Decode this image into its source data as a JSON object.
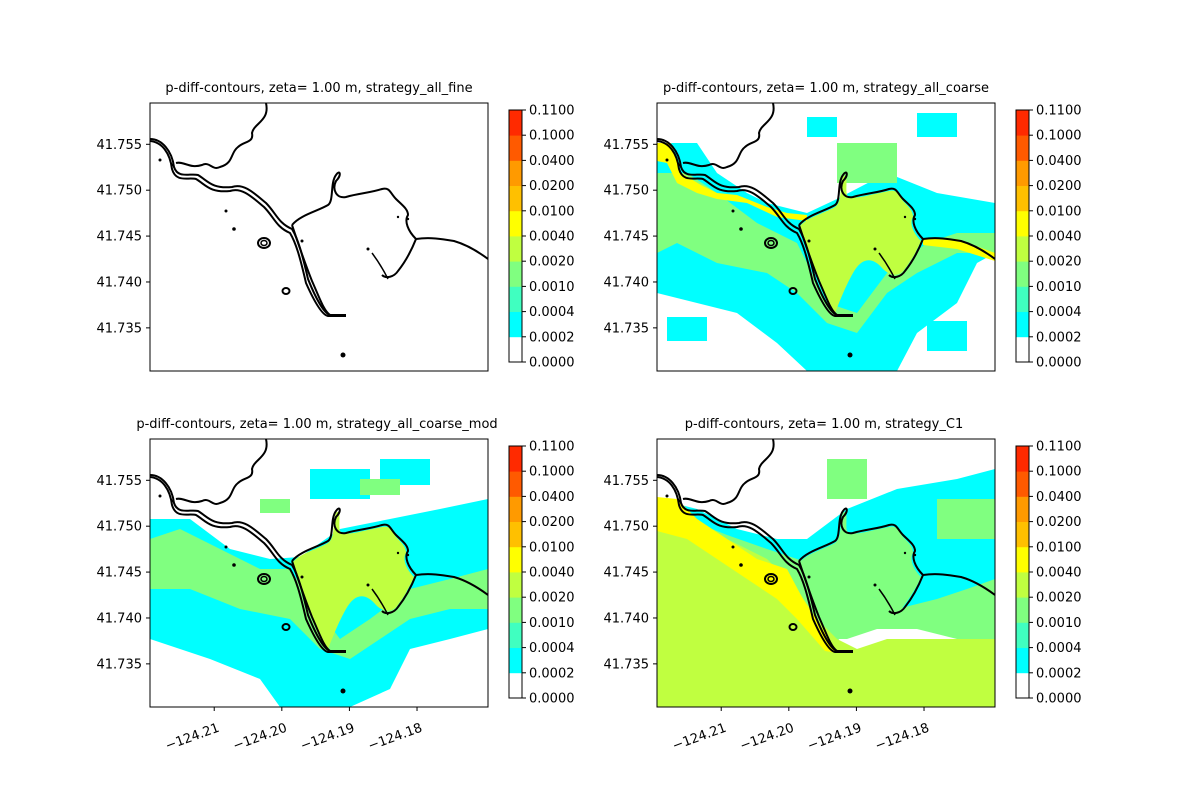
{
  "figure": {
    "colorbar_levels": [
      "0.0000",
      "0.0002",
      "0.0004",
      "0.0010",
      "0.0020",
      "0.0040",
      "0.0100",
      "0.0200",
      "0.0400",
      "0.1000",
      "0.1100"
    ],
    "colorbar_colors": [
      "#ffffff",
      "#00ffff",
      "#40ffc0",
      "#80ff80",
      "#c0ff40",
      "#ffff00",
      "#ffc000",
      "#ff9a00",
      "#ff5a00",
      "#ff2a00",
      "#ff0000"
    ],
    "coastline_color": "#000000"
  },
  "chart_data": [
    {
      "type": "heatmap",
      "title": "p-diff-contours, zeta= 1.00 m, strategy_all_fine",
      "xlim": [
        -124.2195,
        -124.1695
      ],
      "ylim": [
        41.7303,
        41.7595
      ],
      "yticks": [
        41.735,
        41.74,
        41.745,
        41.75,
        41.755
      ],
      "ytick_labels": [
        "41.735",
        "41.740",
        "41.745",
        "41.750",
        "41.755"
      ],
      "xticks": [],
      "xtick_labels": [],
      "fill": {}
    },
    {
      "type": "heatmap",
      "title": "p-diff-contours, zeta= 1.00 m, strategy_all_coarse",
      "xlim": [
        -124.2195,
        -124.1695
      ],
      "ylim": [
        41.7303,
        41.7595
      ],
      "yticks": [
        41.735,
        41.74,
        41.745,
        41.75,
        41.755
      ],
      "ytick_labels": [
        "41.735",
        "41.740",
        "41.745",
        "41.750",
        "41.755"
      ],
      "xticks": [],
      "xtick_labels": [],
      "fill": {
        "low": 0.0003,
        "mid": 0.0015,
        "bay": 0.003,
        "edge": 0.005
      }
    },
    {
      "type": "heatmap",
      "title": "p-diff-contours, zeta= 1.00 m, strategy_all_coarse_mod",
      "xlim": [
        -124.2195,
        -124.1695
      ],
      "ylim": [
        41.7303,
        41.7595
      ],
      "yticks": [
        41.735,
        41.74,
        41.745,
        41.75,
        41.755
      ],
      "ytick_labels": [
        "41.735",
        "41.740",
        "41.745",
        "41.750",
        "41.755"
      ],
      "xticks": [
        -124.21,
        -124.2,
        -124.19,
        -124.18
      ],
      "xtick_labels": [
        "−124.21",
        "−124.20",
        "−124.19",
        "−124.18"
      ],
      "fill": {
        "low": 0.0003,
        "mid": 0.0015,
        "bay": 0.003
      }
    },
    {
      "type": "heatmap",
      "title": "p-diff-contours, zeta= 1.00 m, strategy_C1",
      "xlim": [
        -124.2195,
        -124.1695
      ],
      "ylim": [
        41.7303,
        41.7595
      ],
      "yticks": [
        41.735,
        41.74,
        41.745,
        41.75,
        41.755
      ],
      "ytick_labels": [
        "41.735",
        "41.740",
        "41.745",
        "41.750",
        "41.755"
      ],
      "xticks": [
        -124.21,
        -124.2,
        -124.19,
        -124.18
      ],
      "xtick_labels": [
        "−124.21",
        "−124.20",
        "−124.19",
        "−124.18"
      ],
      "fill": {
        "low": 0.0003,
        "mid": 0.0015,
        "bay": 0.0015,
        "sea": 0.003,
        "band": 0.005
      }
    }
  ]
}
